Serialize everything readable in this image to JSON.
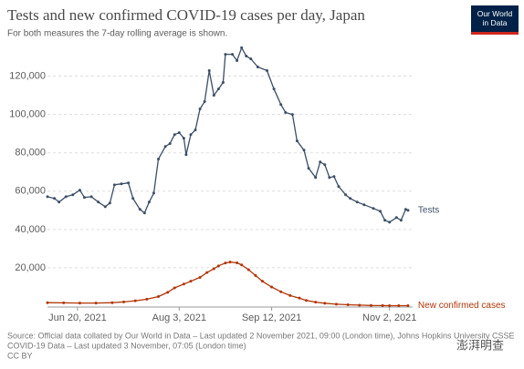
{
  "chart_data": {
    "type": "line",
    "title": "Tests and new confirmed COVID-19 cases per day, Japan",
    "subtitle": "For both measures the 7-day rolling average is shown.",
    "logo": "Our World in Data",
    "source": [
      "Source: Official data collated by Our World in Data – Last updated 2 November 2021, 09:00 (London time), Johns Hopkins University CSSE",
      "COVID-19 Data – Last updated 3 November, 07:05 (London time)",
      "CC BY"
    ],
    "watermark": "澎湃明查",
    "xlim": [
      "2021-06-07",
      "2021-11-12"
    ],
    "xticks": [
      {
        "value": "2021-06-20",
        "label": "Jun 20, 2021"
      },
      {
        "value": "2021-08-03",
        "label": "Aug 3, 2021"
      },
      {
        "value": "2021-09-12",
        "label": "Sep 12, 2021"
      },
      {
        "value": "2021-11-02",
        "label": "Nov 2, 2021"
      }
    ],
    "ylim": [
      0,
      135000
    ],
    "yticks": [
      {
        "value": 20000,
        "label": "20,000"
      },
      {
        "value": 40000,
        "label": "40,000"
      },
      {
        "value": 60000,
        "label": "60,000"
      },
      {
        "value": 80000,
        "label": "80,000"
      },
      {
        "value": 100000,
        "label": "100,000"
      },
      {
        "value": 120000,
        "label": "120,000"
      }
    ],
    "grid": true,
    "series": [
      {
        "name": "Tests",
        "color": "#3c4e66",
        "x": [
          "2021-06-07",
          "2021-06-10",
          "2021-06-12",
          "2021-06-15",
          "2021-06-18",
          "2021-06-21",
          "2021-06-23",
          "2021-06-26",
          "2021-06-29",
          "2021-07-02",
          "2021-07-04",
          "2021-07-06",
          "2021-07-09",
          "2021-07-12",
          "2021-07-14",
          "2021-07-17",
          "2021-07-19",
          "2021-07-21",
          "2021-07-23",
          "2021-07-25",
          "2021-07-28",
          "2021-07-30",
          "2021-08-01",
          "2021-08-03",
          "2021-08-05",
          "2021-08-06",
          "2021-08-08",
          "2021-08-10",
          "2021-08-12",
          "2021-08-14",
          "2021-08-16",
          "2021-08-18",
          "2021-08-20",
          "2021-08-22",
          "2021-08-23",
          "2021-08-26",
          "2021-08-28",
          "2021-08-30",
          "2021-09-01",
          "2021-09-03",
          "2021-09-06",
          "2021-09-10",
          "2021-09-13",
          "2021-09-16",
          "2021-09-18",
          "2021-09-21",
          "2021-09-23",
          "2021-09-26",
          "2021-09-28",
          "2021-10-01",
          "2021-10-03",
          "2021-10-05",
          "2021-10-07",
          "2021-10-09",
          "2021-10-11",
          "2021-10-14",
          "2021-10-16",
          "2021-10-19",
          "2021-10-22",
          "2021-10-26",
          "2021-10-29",
          "2021-10-31",
          "2021-11-02",
          "2021-11-05",
          "2021-11-07",
          "2021-11-09",
          "2021-11-10"
        ],
        "values": [
          57100,
          56200,
          54300,
          57100,
          58100,
          60500,
          56700,
          57100,
          54300,
          51900,
          53800,
          63300,
          63800,
          64300,
          56200,
          50500,
          48600,
          54300,
          59000,
          76700,
          83300,
          84800,
          89500,
          90500,
          87600,
          79000,
          89500,
          91900,
          102900,
          106700,
          122900,
          110000,
          113300,
          116700,
          131400,
          131400,
          128100,
          134800,
          130500,
          129000,
          124800,
          122900,
          113300,
          105200,
          101000,
          100000,
          86200,
          81400,
          71900,
          67100,
          75200,
          73800,
          67100,
          67600,
          62400,
          58100,
          56200,
          54300,
          52900,
          51000,
          49500,
          44800,
          43800,
          46200,
          44800,
          50500,
          50000
        ]
      },
      {
        "name": "New confirmed cases",
        "color": "#b13507",
        "x": [
          "2021-06-07",
          "2021-06-14",
          "2021-06-21",
          "2021-06-28",
          "2021-07-05",
          "2021-07-10",
          "2021-07-15",
          "2021-07-20",
          "2021-07-25",
          "2021-07-29",
          "2021-08-01",
          "2021-08-05",
          "2021-08-08",
          "2021-08-12",
          "2021-08-15",
          "2021-08-18",
          "2021-08-20",
          "2021-08-23",
          "2021-08-25",
          "2021-08-28",
          "2021-08-30",
          "2021-09-02",
          "2021-09-05",
          "2021-09-08",
          "2021-09-12",
          "2021-09-16",
          "2021-09-20",
          "2021-09-24",
          "2021-09-27",
          "2021-10-01",
          "2021-10-05",
          "2021-10-10",
          "2021-10-15",
          "2021-10-20",
          "2021-10-25",
          "2021-10-30",
          "2021-11-02",
          "2021-11-06",
          "2021-11-10"
        ],
        "values": [
          1800,
          1700,
          1600,
          1600,
          1800,
          2200,
          2800,
          3600,
          5000,
          7200,
          9500,
          11500,
          13000,
          15000,
          17500,
          19500,
          21000,
          22500,
          23000,
          22600,
          21500,
          19000,
          16000,
          13000,
          10000,
          7500,
          5500,
          4200,
          3000,
          2100,
          1500,
          1000,
          700,
          500,
          350,
          280,
          250,
          250,
          250
        ]
      }
    ]
  }
}
